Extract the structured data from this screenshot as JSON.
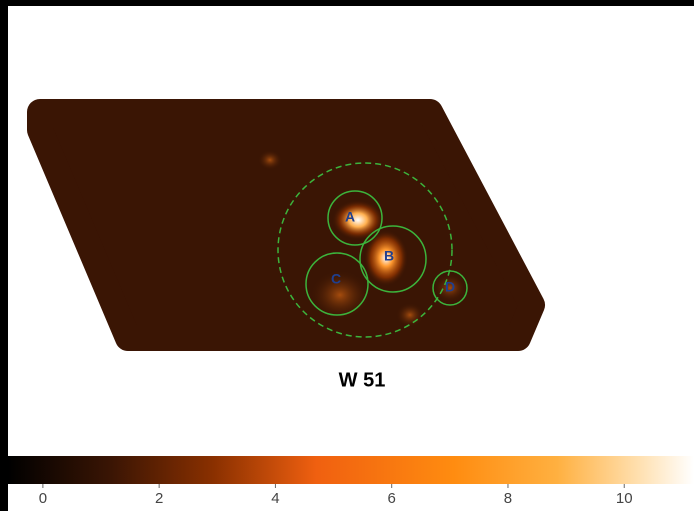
{
  "image": {
    "title": "W 51",
    "sources": [
      {
        "label": "A"
      },
      {
        "label": "B"
      },
      {
        "label": "C"
      },
      {
        "label": "D"
      }
    ]
  },
  "colorbar": {
    "lim": [
      -0.6,
      11.2
    ],
    "ticks": [
      0,
      2,
      4,
      6,
      8,
      10
    ]
  }
}
